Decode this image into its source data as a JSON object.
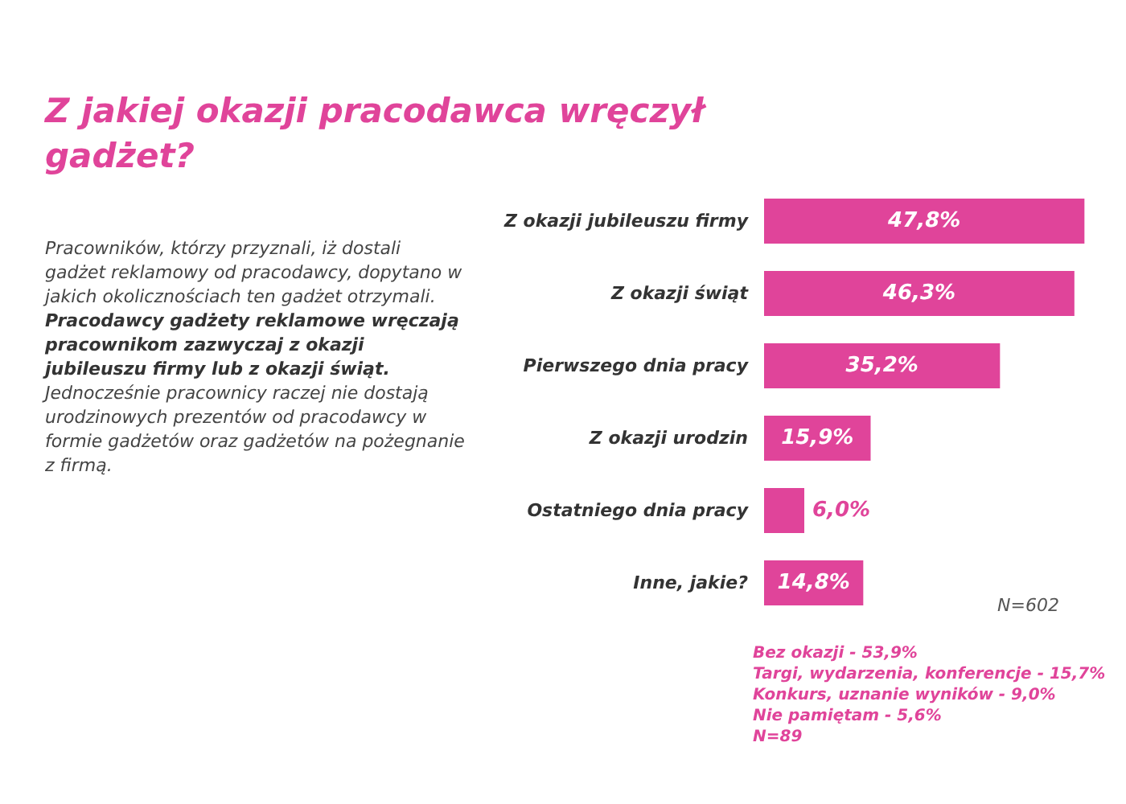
{
  "chart_data": {
    "type": "bar",
    "orientation": "horizontal",
    "title": "Z jakiej okazji pracodawca wręczył gadżet?",
    "categories": [
      "Z okazji jubileuszu firmy",
      "Z okazji świąt",
      "Pierwszego dnia pracy",
      "Z okazji urodzin",
      "Ostatniego dnia pracy",
      "Inne, jakie?"
    ],
    "values": [
      47.8,
      46.3,
      35.2,
      15.9,
      6.0,
      14.8
    ],
    "value_labels": [
      "47,8%",
      "46,3%",
      "35,2%",
      "15,9%",
      "6,0%",
      "14,8%"
    ],
    "color": "#e0449a",
    "xlim": [
      0,
      48
    ],
    "annotations": [
      "Pracowników, którzy przyznali, iż dostali gadżet reklamowy od pracodawcy, dopytano w jakich okolicznościach ten gadżet otrzymali.",
      "Pracodawcy gadżety reklamowe wręczają pracownikom zazwyczaj z okazji jubileuszu firmy lub z okazji świąt.",
      "Jednocześnie pracownicy raczej nie dostają urodzinowych prezentów od pracodawcy w formie gadżetów oraz gadżetów na pożegnanie z firmą.",
      "N=602",
      "Bez okazji - 53,9%",
      "Targi, wydarzenia, konferencje - 15,7%",
      "Konkurs, uznanie wyników - 9,0%",
      "Nie pamiętam - 5,6%",
      "N=89"
    ]
  }
}
